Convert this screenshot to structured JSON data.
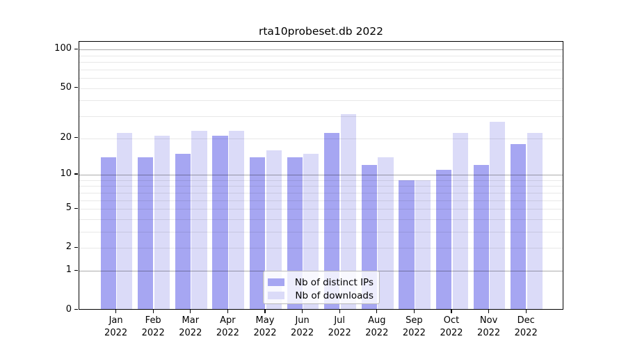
{
  "window": {
    "background": "#ffffff"
  },
  "chart_data": {
    "type": "bar",
    "title": "rta10probeset.db 2022",
    "categories": [
      "Jan",
      "Feb",
      "Mar",
      "Apr",
      "May",
      "Jun",
      "Jul",
      "Aug",
      "Sep",
      "Oct",
      "Nov",
      "Dec"
    ],
    "category_year": "2022",
    "series": [
      {
        "name": "Nb of distinct IPs",
        "color": "#a6a6f2",
        "values": [
          14,
          14,
          15,
          21,
          14,
          14,
          22,
          12,
          9,
          11,
          12,
          18
        ]
      },
      {
        "name": "Nb of downloads",
        "color": "#dbdbf8",
        "values": [
          22,
          21,
          23,
          23,
          16,
          15,
          31,
          14,
          9,
          22,
          27,
          22
        ]
      }
    ],
    "xlabel": "",
    "ylabel": "",
    "y_axis": {
      "scale": "log1p",
      "tick_values": [
        0,
        1,
        2,
        5,
        10,
        20,
        50,
        100
      ],
      "tick_labels": [
        "0",
        "1",
        "2",
        "5",
        "10",
        "20",
        "50",
        "100"
      ],
      "major_gridlines": [
        1,
        10,
        100
      ],
      "minor_gridlines": [
        2,
        3,
        4,
        5,
        6,
        7,
        8,
        9,
        20,
        30,
        40,
        50,
        60,
        70,
        80,
        90
      ],
      "ylim": [
        0,
        115
      ]
    },
    "grid": true,
    "legend": {
      "position": "bottom-center-inside",
      "entries": [
        "Nb of distinct IPs",
        "Nb of downloads"
      ]
    }
  },
  "colors": {
    "major_grid": "rgba(0,0,0,0.33)",
    "minor_grid": "rgba(0,0,0,0.09)",
    "axis": "#000000",
    "text": "#000000"
  }
}
